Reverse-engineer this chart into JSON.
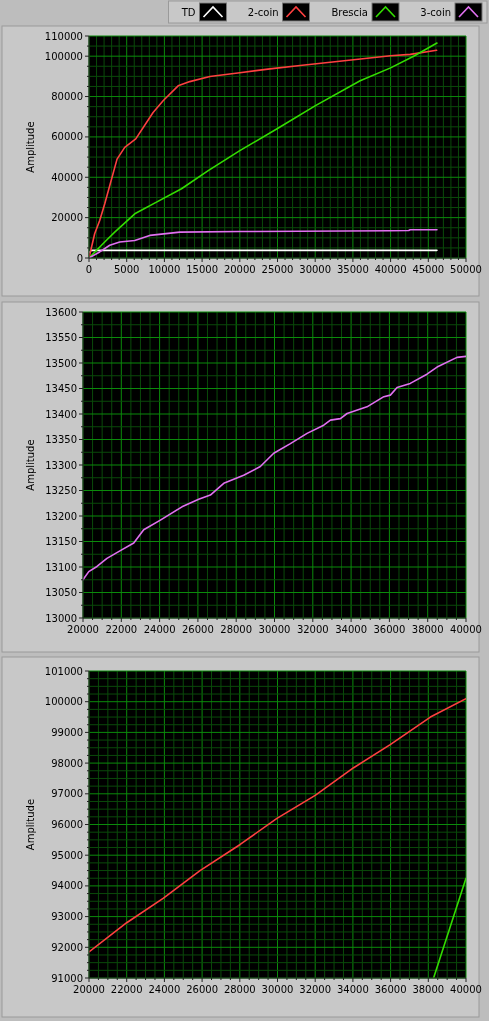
{
  "chart_data": [
    {
      "type": "line",
      "ylabel": "Amplitude",
      "xlim": [
        0,
        50000
      ],
      "xticks": [
        0,
        {
          "value": 1000,
          "label": null
        },
        {
          "value": 2000,
          "label": null
        },
        {
          "value": 3000,
          "label": null
        },
        {
          "value": 4000,
          "label": null
        },
        5000,
        {
          "value": 6000,
          "label": null
        },
        {
          "value": 7000,
          "label": null
        },
        {
          "value": 8000,
          "label": null
        },
        {
          "value": 9000,
          "label": null
        },
        10000,
        {
          "value": 11000,
          "label": null
        },
        {
          "value": 12000,
          "label": null
        },
        {
          "value": 13000,
          "label": null
        },
        {
          "value": 14000,
          "label": null
        },
        15000,
        {
          "value": 16000,
          "label": null
        },
        {
          "value": 17000,
          "label": null
        },
        {
          "value": 18000,
          "label": null
        },
        {
          "value": 19000,
          "label": null
        },
        20000,
        {
          "value": 21000,
          "label": null
        },
        {
          "value": 22000,
          "label": null
        },
        {
          "value": 23000,
          "label": null
        },
        {
          "value": 24000,
          "label": null
        },
        25000,
        {
          "value": 26000,
          "label": null
        },
        {
          "value": 27000,
          "label": null
        },
        {
          "value": 28000,
          "label": null
        },
        {
          "value": 29000,
          "label": null
        },
        30000,
        {
          "value": 31000,
          "label": null
        },
        {
          "value": 32000,
          "label": null
        },
        {
          "value": 33000,
          "label": null
        },
        {
          "value": 34000,
          "label": null
        },
        35000,
        {
          "value": 36000,
          "label": null
        },
        {
          "value": 37000,
          "label": null
        },
        {
          "value": 38000,
          "label": null
        },
        {
          "value": 39000,
          "label": null
        },
        40000,
        {
          "value": 41000,
          "label": null
        },
        {
          "value": 42000,
          "label": null
        },
        {
          "value": 43000,
          "label": null
        },
        {
          "value": 44000,
          "label": null
        },
        45000,
        {
          "value": 46000,
          "label": null
        },
        {
          "value": 47000,
          "label": null
        },
        {
          "value": 48000,
          "label": null
        },
        {
          "value": 49000,
          "label": null
        },
        50000
      ],
      "ylim": [
        0,
        110000
      ],
      "yticks": [
        0,
        {
          "value": 5000,
          "label": null
        },
        {
          "value": 10000,
          "label": null
        },
        {
          "value": 15000,
          "label": null
        },
        20000,
        {
          "value": 25000,
          "label": null
        },
        {
          "value": 30000,
          "label": null
        },
        {
          "value": 35000,
          "label": null
        },
        40000,
        {
          "value": 45000,
          "label": null
        },
        {
          "value": 50000,
          "label": null
        },
        {
          "value": 55000,
          "label": null
        },
        60000,
        {
          "value": 65000,
          "label": null
        },
        {
          "value": 70000,
          "label": null
        },
        {
          "value": 75000,
          "label": null
        },
        80000,
        {
          "value": 85000,
          "label": null
        },
        {
          "value": 90000,
          "label": null
        },
        {
          "value": 95000,
          "label": null
        },
        100000,
        {
          "value": 105000,
          "label": null
        },
        110000
      ],
      "grid": true,
      "legend": "top right",
      "series": [
        {
          "name": "TD",
          "color": "#ffffff",
          "x": [
            0,
            300,
            46150
          ],
          "values": [
            2500,
            3800,
            3800
          ]
        },
        {
          "name": "2-coin",
          "color": "#ff4040",
          "x": [
            0,
            750,
            1420,
            2080,
            3720,
            4740,
            6200,
            8500,
            9830,
            11820,
            13370,
            16030,
            20000,
            24000,
            28000,
            32000,
            36000,
            40000,
            42600,
            46100
          ],
          "values": [
            0,
            12000,
            18600,
            26800,
            49000,
            54800,
            59000,
            72100,
            77900,
            85300,
            87400,
            89900,
            91800,
            93700,
            95400,
            97000,
            98600,
            100200,
            100900,
            102900
          ]
        },
        {
          "name": "Brescia",
          "color": "#33dd00",
          "x": [
            0,
            2080,
            3410,
            6070,
            8950,
            12270,
            15810,
            20000,
            24890,
            29980,
            35960,
            40000,
            43050,
            46150
          ],
          "values": [
            0,
            7900,
            12800,
            21900,
            27700,
            34300,
            43300,
            53200,
            63900,
            75400,
            87800,
            94200,
            100000,
            106500
          ]
        },
        {
          "name": "3-coin",
          "color": "#e070f0",
          "x": [
            0,
            1420,
            2750,
            4070,
            6070,
            8060,
            12050,
            20000,
            40000,
            42400,
            42600,
            46150
          ],
          "values": [
            0,
            3000,
            6300,
            7900,
            8700,
            11200,
            12800,
            13100,
            13500,
            13600,
            14000,
            14000
          ]
        }
      ]
    },
    {
      "type": "line",
      "ylabel": "Amplitude",
      "xlim": [
        20000,
        40000
      ],
      "xticks": [
        20000,
        {
          "value": 20500,
          "label": null
        },
        {
          "value": 21000,
          "label": null
        },
        {
          "value": 21500,
          "label": null
        },
        22000,
        {
          "value": 22500,
          "label": null
        },
        {
          "value": 23000,
          "label": null
        },
        {
          "value": 23500,
          "label": null
        },
        24000,
        {
          "value": 24500,
          "label": null
        },
        {
          "value": 25000,
          "label": null
        },
        {
          "value": 25500,
          "label": null
        },
        26000,
        {
          "value": 26500,
          "label": null
        },
        {
          "value": 27000,
          "label": null
        },
        {
          "value": 27500,
          "label": null
        },
        28000,
        {
          "value": 28500,
          "label": null
        },
        {
          "value": 29000,
          "label": null
        },
        {
          "value": 29500,
          "label": null
        },
        30000,
        {
          "value": 30500,
          "label": null
        },
        {
          "value": 31000,
          "label": null
        },
        {
          "value": 31500,
          "label": null
        },
        32000,
        {
          "value": 32500,
          "label": null
        },
        {
          "value": 33000,
          "label": null
        },
        {
          "value": 33500,
          "label": null
        },
        34000,
        {
          "value": 34500,
          "label": null
        },
        {
          "value": 35000,
          "label": null
        },
        {
          "value": 35500,
          "label": null
        },
        36000,
        {
          "value": 36500,
          "label": null
        },
        {
          "value": 37000,
          "label": null
        },
        {
          "value": 37500,
          "label": null
        },
        38000,
        {
          "value": 38500,
          "label": null
        },
        {
          "value": 39000,
          "label": null
        },
        {
          "value": 39500,
          "label": null
        },
        40000
      ],
      "ylim": [
        13000,
        13600
      ],
      "yticks": [
        13000,
        {
          "value": 13025,
          "label": null
        },
        13050,
        {
          "value": 13075,
          "label": null
        },
        13100,
        {
          "value": 13125,
          "label": null
        },
        13150,
        {
          "value": 13175,
          "label": null
        },
        13200,
        {
          "value": 13225,
          "label": null
        },
        13250,
        {
          "value": 13275,
          "label": null
        },
        13300,
        {
          "value": 13325,
          "label": null
        },
        13350,
        {
          "value": 13375,
          "label": null
        },
        13400,
        {
          "value": 13425,
          "label": null
        },
        13450,
        {
          "value": 13475,
          "label": null
        },
        13500,
        {
          "value": 13525,
          "label": null
        },
        13550,
        {
          "value": 13575,
          "label": null
        },
        13600
      ],
      "grid": true,
      "series": [
        {
          "color": "#e070f0",
          "x": [
            20000,
            20300,
            20730,
            21250,
            21950,
            22650,
            23170,
            24040,
            25170,
            26040,
            26650,
            27350,
            28390,
            29260,
            29960,
            30830,
            31700,
            32570,
            32920,
            33440,
            33790,
            34830,
            35710,
            36050,
            36400,
            37090,
            37960,
            38490,
            39530,
            40000
          ],
          "values": [
            13075,
            13091,
            13101,
            13117,
            13132,
            13147,
            13173,
            13192,
            13218,
            13233,
            13241,
            13264,
            13280,
            13297,
            13323,
            13342,
            13362,
            13378,
            13388,
            13391,
            13401,
            13414,
            13434,
            13437,
            13452,
            13460,
            13478,
            13492,
            13511,
            13513
          ]
        }
      ]
    },
    {
      "type": "line",
      "ylabel": "Amplitude",
      "xlim": [
        20000,
        40000
      ],
      "xticks": [
        20000,
        {
          "value": 20500,
          "label": null
        },
        {
          "value": 21000,
          "label": null
        },
        {
          "value": 21500,
          "label": null
        },
        22000,
        {
          "value": 22500,
          "label": null
        },
        {
          "value": 23000,
          "label": null
        },
        {
          "value": 23500,
          "label": null
        },
        24000,
        {
          "value": 24500,
          "label": null
        },
        {
          "value": 25000,
          "label": null
        },
        {
          "value": 25500,
          "label": null
        },
        26000,
        {
          "value": 26500,
          "label": null
        },
        {
          "value": 27000,
          "label": null
        },
        {
          "value": 27500,
          "label": null
        },
        28000,
        {
          "value": 28500,
          "label": null
        },
        {
          "value": 29000,
          "label": null
        },
        {
          "value": 29500,
          "label": null
        },
        30000,
        {
          "value": 30500,
          "label": null
        },
        {
          "value": 31000,
          "label": null
        },
        {
          "value": 31500,
          "label": null
        },
        32000,
        {
          "value": 32500,
          "label": null
        },
        {
          "value": 33000,
          "label": null
        },
        {
          "value": 33500,
          "label": null
        },
        34000,
        {
          "value": 34500,
          "label": null
        },
        {
          "value": 35000,
          "label": null
        },
        {
          "value": 35500,
          "label": null
        },
        36000,
        {
          "value": 36500,
          "label": null
        },
        {
          "value": 37000,
          "label": null
        },
        {
          "value": 37500,
          "label": null
        },
        38000,
        {
          "value": 38500,
          "label": null
        },
        {
          "value": 39000,
          "label": null
        },
        {
          "value": 39500,
          "label": null
        },
        40000
      ],
      "ylim": [
        91000,
        101000
      ],
      "yticks": [
        91000,
        {
          "value": 91250,
          "label": null
        },
        {
          "value": 91500,
          "label": null
        },
        {
          "value": 91750,
          "label": null
        },
        92000,
        {
          "value": 92250,
          "label": null
        },
        {
          "value": 92500,
          "label": null
        },
        {
          "value": 92750,
          "label": null
        },
        93000,
        {
          "value": 93250,
          "label": null
        },
        {
          "value": 93500,
          "label": null
        },
        {
          "value": 93750,
          "label": null
        },
        94000,
        {
          "value": 94250,
          "label": null
        },
        {
          "value": 94500,
          "label": null
        },
        {
          "value": 94750,
          "label": null
        },
        95000,
        {
          "value": 95250,
          "label": null
        },
        {
          "value": 95500,
          "label": null
        },
        {
          "value": 95750,
          "label": null
        },
        96000,
        {
          "value": 96250,
          "label": null
        },
        {
          "value": 96500,
          "label": null
        },
        {
          "value": 96750,
          "label": null
        },
        97000,
        {
          "value": 97250,
          "label": null
        },
        {
          "value": 97500,
          "label": null
        },
        {
          "value": 97750,
          "label": null
        },
        98000,
        {
          "value": 98250,
          "label": null
        },
        {
          "value": 98500,
          "label": null
        },
        {
          "value": 98750,
          "label": null
        },
        99000,
        {
          "value": 99250,
          "label": null
        },
        {
          "value": 99500,
          "label": null
        },
        {
          "value": 99750,
          "label": null
        },
        100000,
        {
          "value": 100250,
          "label": null
        },
        {
          "value": 100500,
          "label": null
        },
        {
          "value": 100750,
          "label": null
        },
        101000
      ],
      "grid": true,
      "series": [
        {
          "color": "#ff4040",
          "x": [
            20000,
            22000,
            23950,
            25890,
            28020,
            29970,
            32000,
            34040,
            35980,
            38110,
            40000
          ],
          "values": [
            91850,
            92800,
            93600,
            94500,
            95350,
            96200,
            96950,
            97850,
            98600,
            99500,
            100100
          ]
        },
        {
          "color": "#33dd00",
          "x": [
            38280,
            40000
          ],
          "values": [
            91000,
            94250
          ]
        }
      ]
    }
  ]
}
